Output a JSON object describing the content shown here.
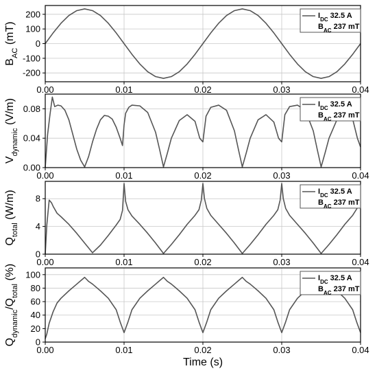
{
  "chart_data": [
    {
      "type": "line",
      "ylabel": {
        "main": "B",
        "sub": "AC",
        "tail": " (mT)"
      },
      "ylim": [
        -260,
        260
      ],
      "yticks": [
        -200,
        -100,
        0,
        100,
        200
      ],
      "xlim": [
        0,
        0.04
      ],
      "xticks": [
        "0.00",
        "0.01",
        "0.02",
        "0.03",
        "0.04"
      ],
      "legend": {
        "line1": {
          "main": "I",
          "sub": "DC",
          "tail": " 32.5 A"
        },
        "line2": {
          "main": "B",
          "sub": "AC",
          "tail": " 237 mT"
        }
      },
      "series": [
        {
          "x": [
            0,
            0.001,
            0.002,
            0.003,
            0.004,
            0.005,
            0.006,
            0.007,
            0.008,
            0.009,
            0.01,
            0.011,
            0.012,
            0.013,
            0.014,
            0.015,
            0.016,
            0.017,
            0.018,
            0.019,
            0.02,
            0.021,
            0.022,
            0.023,
            0.024,
            0.025,
            0.026,
            0.027,
            0.028,
            0.029,
            0.03,
            0.031,
            0.032,
            0.033,
            0.034,
            0.035,
            0.036,
            0.037,
            0.038,
            0.039,
            0.04
          ],
          "values": [
            0,
            73,
            139,
            192,
            225,
            237,
            225,
            192,
            139,
            73,
            0,
            -73,
            -139,
            -192,
            -225,
            -237,
            -225,
            -192,
            -139,
            -73,
            0,
            73,
            139,
            192,
            225,
            237,
            225,
            192,
            139,
            73,
            0,
            -73,
            -139,
            -192,
            -225,
            -237,
            -225,
            -192,
            -139,
            -73,
            0
          ]
        }
      ]
    },
    {
      "type": "line",
      "ylabel": {
        "main": "V",
        "sub": "dynamic",
        "tail": " (V/m)"
      },
      "ylim": [
        0,
        0.1
      ],
      "yticks": [
        "0.00",
        "0.04",
        "0.08"
      ],
      "xlim": [
        0,
        0.04
      ],
      "xticks": [
        "0.00",
        "0.01",
        "0.02",
        "0.03",
        "0.04"
      ],
      "legend": {
        "line1": {
          "main": "I",
          "sub": "DC",
          "tail": " 32.5 A"
        },
        "line2": {
          "main": "B",
          "sub": "AC",
          "tail": " 237 mT"
        }
      },
      "series": [
        {
          "x": [
            0,
            0.0003,
            0.0006,
            0.0009,
            0.0012,
            0.0016,
            0.002,
            0.0025,
            0.003,
            0.0035,
            0.004,
            0.0045,
            0.005,
            0.0055,
            0.006,
            0.0065,
            0.007,
            0.0075,
            0.008,
            0.0085,
            0.009,
            0.0095,
            0.0098,
            0.01,
            0.0102,
            0.0106,
            0.011,
            0.012,
            0.013,
            0.014,
            0.0145,
            0.015,
            0.0155,
            0.016,
            0.017,
            0.018,
            0.019,
            0.0196,
            0.02,
            0.0204,
            0.021,
            0.022,
            0.023,
            0.024,
            0.0245,
            0.025,
            0.0255,
            0.026,
            0.027,
            0.028,
            0.029,
            0.0296,
            0.03,
            0.0304,
            0.031,
            0.032,
            0.033,
            0.034,
            0.0345,
            0.035,
            0.0355,
            0.036,
            0.037,
            0.038,
            0.039,
            0.0396,
            0.04
          ],
          "values": [
            0.0,
            0.045,
            0.072,
            0.096,
            0.083,
            0.085,
            0.084,
            0.078,
            0.065,
            0.045,
            0.025,
            0.01,
            0.001,
            0.015,
            0.035,
            0.052,
            0.065,
            0.071,
            0.07,
            0.066,
            0.055,
            0.04,
            0.03,
            0.058,
            0.074,
            0.082,
            0.085,
            0.084,
            0.075,
            0.048,
            0.025,
            0.001,
            0.02,
            0.04,
            0.064,
            0.072,
            0.063,
            0.04,
            0.035,
            0.07,
            0.082,
            0.085,
            0.078,
            0.05,
            0.025,
            0.001,
            0.02,
            0.04,
            0.065,
            0.072,
            0.062,
            0.04,
            0.035,
            0.072,
            0.083,
            0.085,
            0.078,
            0.05,
            0.025,
            0.001,
            0.02,
            0.04,
            0.065,
            0.072,
            0.066,
            0.04,
            0.028
          ]
        }
      ]
    },
    {
      "type": "line",
      "ylabel": {
        "main": "Q",
        "sub": "total",
        "tail": " (W/m)"
      },
      "ylim": [
        0,
        10.5
      ],
      "yticks": [
        0,
        4,
        8
      ],
      "xlim": [
        0,
        0.04
      ],
      "xticks": [
        "0.00",
        "0.01",
        "0.02",
        "0.03",
        "0.04"
      ],
      "legend": {
        "line1": {
          "main": "I",
          "sub": "DC",
          "tail": " 32.5 A"
        },
        "line2": {
          "main": "B",
          "sub": "AC",
          "tail": " 237 mT"
        }
      },
      "series": [
        {
          "x": [
            0,
            0.0002,
            0.0005,
            0.0008,
            0.001,
            0.0015,
            0.002,
            0.003,
            0.004,
            0.005,
            0.006,
            0.007,
            0.008,
            0.009,
            0.0095,
            0.0098,
            0.01,
            0.0102,
            0.0105,
            0.011,
            0.012,
            0.013,
            0.014,
            0.015,
            0.016,
            0.017,
            0.018,
            0.019,
            0.0195,
            0.0198,
            0.02,
            0.0202,
            0.0205,
            0.021,
            0.022,
            0.023,
            0.024,
            0.025,
            0.026,
            0.027,
            0.028,
            0.029,
            0.0295,
            0.0298,
            0.03,
            0.0302,
            0.0305,
            0.031,
            0.032,
            0.033,
            0.034,
            0.035,
            0.036,
            0.037,
            0.038,
            0.039,
            0.0395,
            0.04
          ],
          "values": [
            0,
            4.2,
            7.8,
            7.4,
            6.9,
            5.9,
            5.4,
            4.3,
            3.0,
            1.6,
            0.2,
            1.3,
            2.7,
            4.2,
            5.0,
            6.3,
            10.2,
            7.6,
            6.4,
            5.5,
            4.3,
            3.0,
            1.6,
            0.1,
            1.4,
            2.8,
            4.3,
            5.6,
            6.4,
            7.8,
            10.2,
            8.0,
            6.6,
            5.6,
            4.3,
            3.0,
            1.6,
            0.1,
            1.4,
            2.8,
            4.3,
            5.6,
            6.4,
            7.8,
            10.2,
            8.0,
            6.6,
            5.6,
            4.3,
            3.0,
            1.6,
            0.1,
            1.4,
            2.8,
            4.3,
            5.6,
            6.5,
            7.5
          ]
        }
      ]
    },
    {
      "type": "line",
      "ylabel": {
        "main": "Q",
        "sub": "dynamic",
        "mid": "/Q",
        "sub2": "total",
        "tail": " (%)"
      },
      "ylim": [
        0,
        110
      ],
      "yticks": [
        0,
        20,
        40,
        60,
        80,
        100
      ],
      "xlim": [
        0,
        0.04
      ],
      "xticks": [
        "0.00",
        "0.01",
        "0.02",
        "0.03",
        "0.04"
      ],
      "xlabel": "Time (s)",
      "legend": {
        "line1": {
          "main": "I",
          "sub": "DC",
          "tail": " 32.5 A"
        },
        "line2": {
          "main": "B",
          "sub": "AC",
          "tail": " 237 mT"
        }
      },
      "series": [
        {
          "x": [
            0,
            0.0002,
            0.0005,
            0.001,
            0.0015,
            0.002,
            0.003,
            0.004,
            0.0045,
            0.005,
            0.0055,
            0.006,
            0.007,
            0.008,
            0.009,
            0.0095,
            0.01,
            0.0105,
            0.011,
            0.012,
            0.013,
            0.014,
            0.0145,
            0.015,
            0.0155,
            0.016,
            0.017,
            0.018,
            0.019,
            0.0195,
            0.02,
            0.0205,
            0.021,
            0.022,
            0.023,
            0.024,
            0.0245,
            0.025,
            0.0255,
            0.026,
            0.027,
            0.028,
            0.029,
            0.0295,
            0.03,
            0.0305,
            0.031,
            0.032,
            0.033,
            0.034,
            0.0345,
            0.035,
            0.0355,
            0.036,
            0.037,
            0.038,
            0.039,
            0.0395,
            0.04
          ],
          "values": [
            5,
            12,
            28,
            45,
            58,
            65,
            76,
            86,
            91,
            96,
            90,
            86,
            76,
            65,
            48,
            30,
            14,
            30,
            48,
            65,
            76,
            86,
            91,
            96,
            90,
            86,
            76,
            65,
            48,
            30,
            14,
            30,
            48,
            65,
            76,
            86,
            91,
            96,
            90,
            86,
            76,
            65,
            48,
            30,
            14,
            30,
            48,
            65,
            76,
            86,
            91,
            96,
            90,
            86,
            76,
            65,
            48,
            30,
            14
          ]
        }
      ]
    }
  ]
}
